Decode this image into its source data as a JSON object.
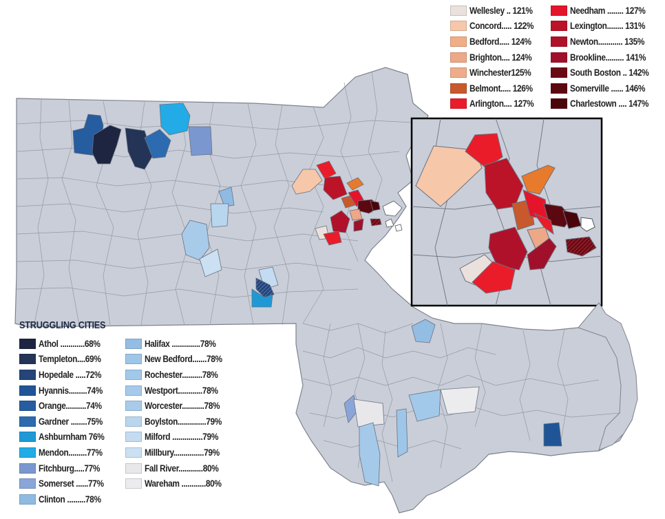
{
  "colors": {
    "base": "#c9ced8",
    "border": "#8a909c",
    "water": "#ffffff",
    "athol": "#1e2540",
    "templeton": "#243456",
    "hopedale": "#24447a",
    "hyannis": "#1f5596",
    "orange": "#265ca0",
    "gardner": "#2c6bb0",
    "ashburnham": "#1f99d6",
    "mendon": "#22abe6",
    "fitchburg": "#7b97cf",
    "somerset": "#8aa6d8",
    "clinton": "#8fbbe3",
    "halifax": "#94bde4",
    "new_bedford": "#9ec6e8",
    "rochester": "#a3c9ea",
    "westport": "#a5c9e9",
    "worcester": "#a8cbea",
    "boylston": "#b9d6ef",
    "milford": "#c3dcf1",
    "millbury": "#cbe0f2",
    "fall_river": "#e8e8ea",
    "wareham": "#ececee",
    "wellesley": "#ebe1dc",
    "concord": "#f7c7a9",
    "bedford": "#f1ad86",
    "brighton": "#eda887",
    "winchester": "#efac8b",
    "belmont": "#c8592c",
    "arlington": "#ea1c2a",
    "needham": "#e4152b",
    "lexington": "#bb1328",
    "newton": "#b0112a",
    "brookline": "#a0102a",
    "south_boston": "#6b0a14",
    "somerville": "#5c0810",
    "charlestown": "#4a050b",
    "highlight_orange": "#e87a2c"
  },
  "legend_struggling": {
    "title": "STRUGGLING CITIES",
    "left_column": [
      {
        "label": "Athol ............68%",
        "color": "#1e2540"
      },
      {
        "label": "Templeton....69%",
        "color": "#243456"
      },
      {
        "label": "Hopedale .....72%",
        "color": "#24447a"
      },
      {
        "label": "Hyannis.........74%",
        "color": "#1f5596"
      },
      {
        "label": "Orange..........74%",
        "color": "#265ca0"
      },
      {
        "label": "Gardner ........75%",
        "color": "#2c6bb0"
      },
      {
        "label": "Ashburnham 76%",
        "color": "#1f99d6"
      },
      {
        "label": "Mendon.........77%",
        "color": "#22abe6"
      },
      {
        "label": "Fitchburg.....77%",
        "color": "#7b97cf"
      },
      {
        "label": "Somerset ......77%",
        "color": "#8aa6d8"
      },
      {
        "label": "Clinton .........78%",
        "color": "#8fbbe3"
      }
    ],
    "right_column": [
      {
        "label": "Halifax ..............78%",
        "color": "#94bde4"
      },
      {
        "label": "New Bedford.......78%",
        "color": "#9ec6e8"
      },
      {
        "label": "Rochester..........78%",
        "color": "#a3c9ea"
      },
      {
        "label": "Westport............78%",
        "color": "#a5c9e9"
      },
      {
        "label": "Worcester...........78%",
        "color": "#a8cbea"
      },
      {
        "label": "Boylston..............79%",
        "color": "#b9d6ef"
      },
      {
        "label": "Milford ...............79%",
        "color": "#c3dcf1"
      },
      {
        "label": "Millbury...............79%",
        "color": "#cbe0f2"
      },
      {
        "label": "Fall River............80%",
        "color": "#e8e8ea"
      },
      {
        "label": "Wareham ............80%",
        "color": "#ececee"
      }
    ]
  },
  "legend_thriving": {
    "left_column": [
      {
        "label": "Wellesley .. 121%",
        "color": "#ebe1dc"
      },
      {
        "label": "Concord..... 122%",
        "color": "#f7c7a9"
      },
      {
        "label": "Bedford..... 124%",
        "color": "#f1ad86"
      },
      {
        "label": "Brighton.... 124%",
        "color": "#eda887"
      },
      {
        "label": "Winchester125%",
        "color": "#efac8b"
      },
      {
        "label": "Belmont..... 126%",
        "color": "#c8592c"
      },
      {
        "label": "Arlington.... 127%",
        "color": "#ea1c2a"
      }
    ],
    "right_column": [
      {
        "label": "Needham ........ 127%",
        "color": "#e4152b"
      },
      {
        "label": "Lexington........ 131%",
        "color": "#bb1328"
      },
      {
        "label": "Newton............ 135%",
        "color": "#b0112a"
      },
      {
        "label": "Brookline......... 141%",
        "color": "#a0102a"
      },
      {
        "label": "South Boston .. 142%",
        "color": "#6b0a14"
      },
      {
        "label": "Somerville ...... 146%",
        "color": "#5c0810"
      },
      {
        "label": "Charlestown .... 147%",
        "color": "#4a050b"
      }
    ]
  }
}
